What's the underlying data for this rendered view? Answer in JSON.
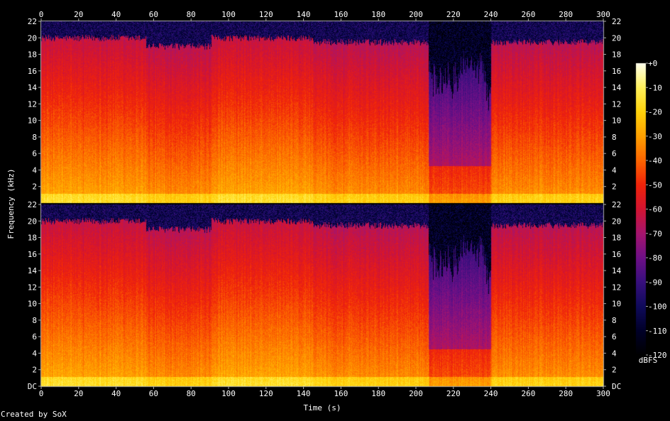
{
  "chart_data": {
    "type": "heatmap",
    "xlabel": "Time (s)",
    "ylabel": "Frequency (kHz)",
    "xlim": [
      0,
      300
    ],
    "ylim": [
      0,
      22
    ],
    "x_ticks": [
      0,
      20,
      40,
      60,
      80,
      100,
      120,
      140,
      160,
      180,
      200,
      220,
      240,
      260,
      280,
      300
    ],
    "y_ticks_top": [
      "22",
      "20",
      "18",
      "16",
      "14",
      "12",
      "10",
      "8",
      "6",
      "4",
      "2"
    ],
    "y_ticks_bottom": [
      "22",
      "20",
      "18",
      "16",
      "14",
      "12",
      "10",
      "8",
      "6",
      "4",
      "2",
      "DC"
    ],
    "channels": 2,
    "colorbar": {
      "label": "dBFS",
      "ticks": [
        "+0",
        "-10",
        "-20",
        "-30",
        "-40",
        "-50",
        "-60",
        "-70",
        "-80",
        "-90",
        "-100",
        "-110",
        "-120"
      ],
      "range": [
        -120,
        0
      ]
    },
    "segments": [
      {
        "start": 0,
        "end": 56,
        "cutoff_khz": 20.0,
        "level": "loud"
      },
      {
        "start": 56,
        "end": 91,
        "cutoff_khz": 19.0,
        "level": "medium"
      },
      {
        "start": 91,
        "end": 145,
        "cutoff_khz": 20.0,
        "level": "loud"
      },
      {
        "start": 145,
        "end": 207,
        "cutoff_khz": 19.5,
        "level": "medium"
      },
      {
        "start": 207,
        "end": 224,
        "cutoff_khz": 17.0,
        "level": "quiet"
      },
      {
        "start": 224,
        "end": 237,
        "cutoff_khz": 18.5,
        "level": "quiet"
      },
      {
        "start": 237,
        "end": 240,
        "cutoff_khz": 15.0,
        "level": "quiet"
      },
      {
        "start": 240,
        "end": 300,
        "cutoff_khz": 19.5,
        "level": "medium"
      }
    ]
  },
  "footer": {
    "credit": "Created by SoX"
  }
}
